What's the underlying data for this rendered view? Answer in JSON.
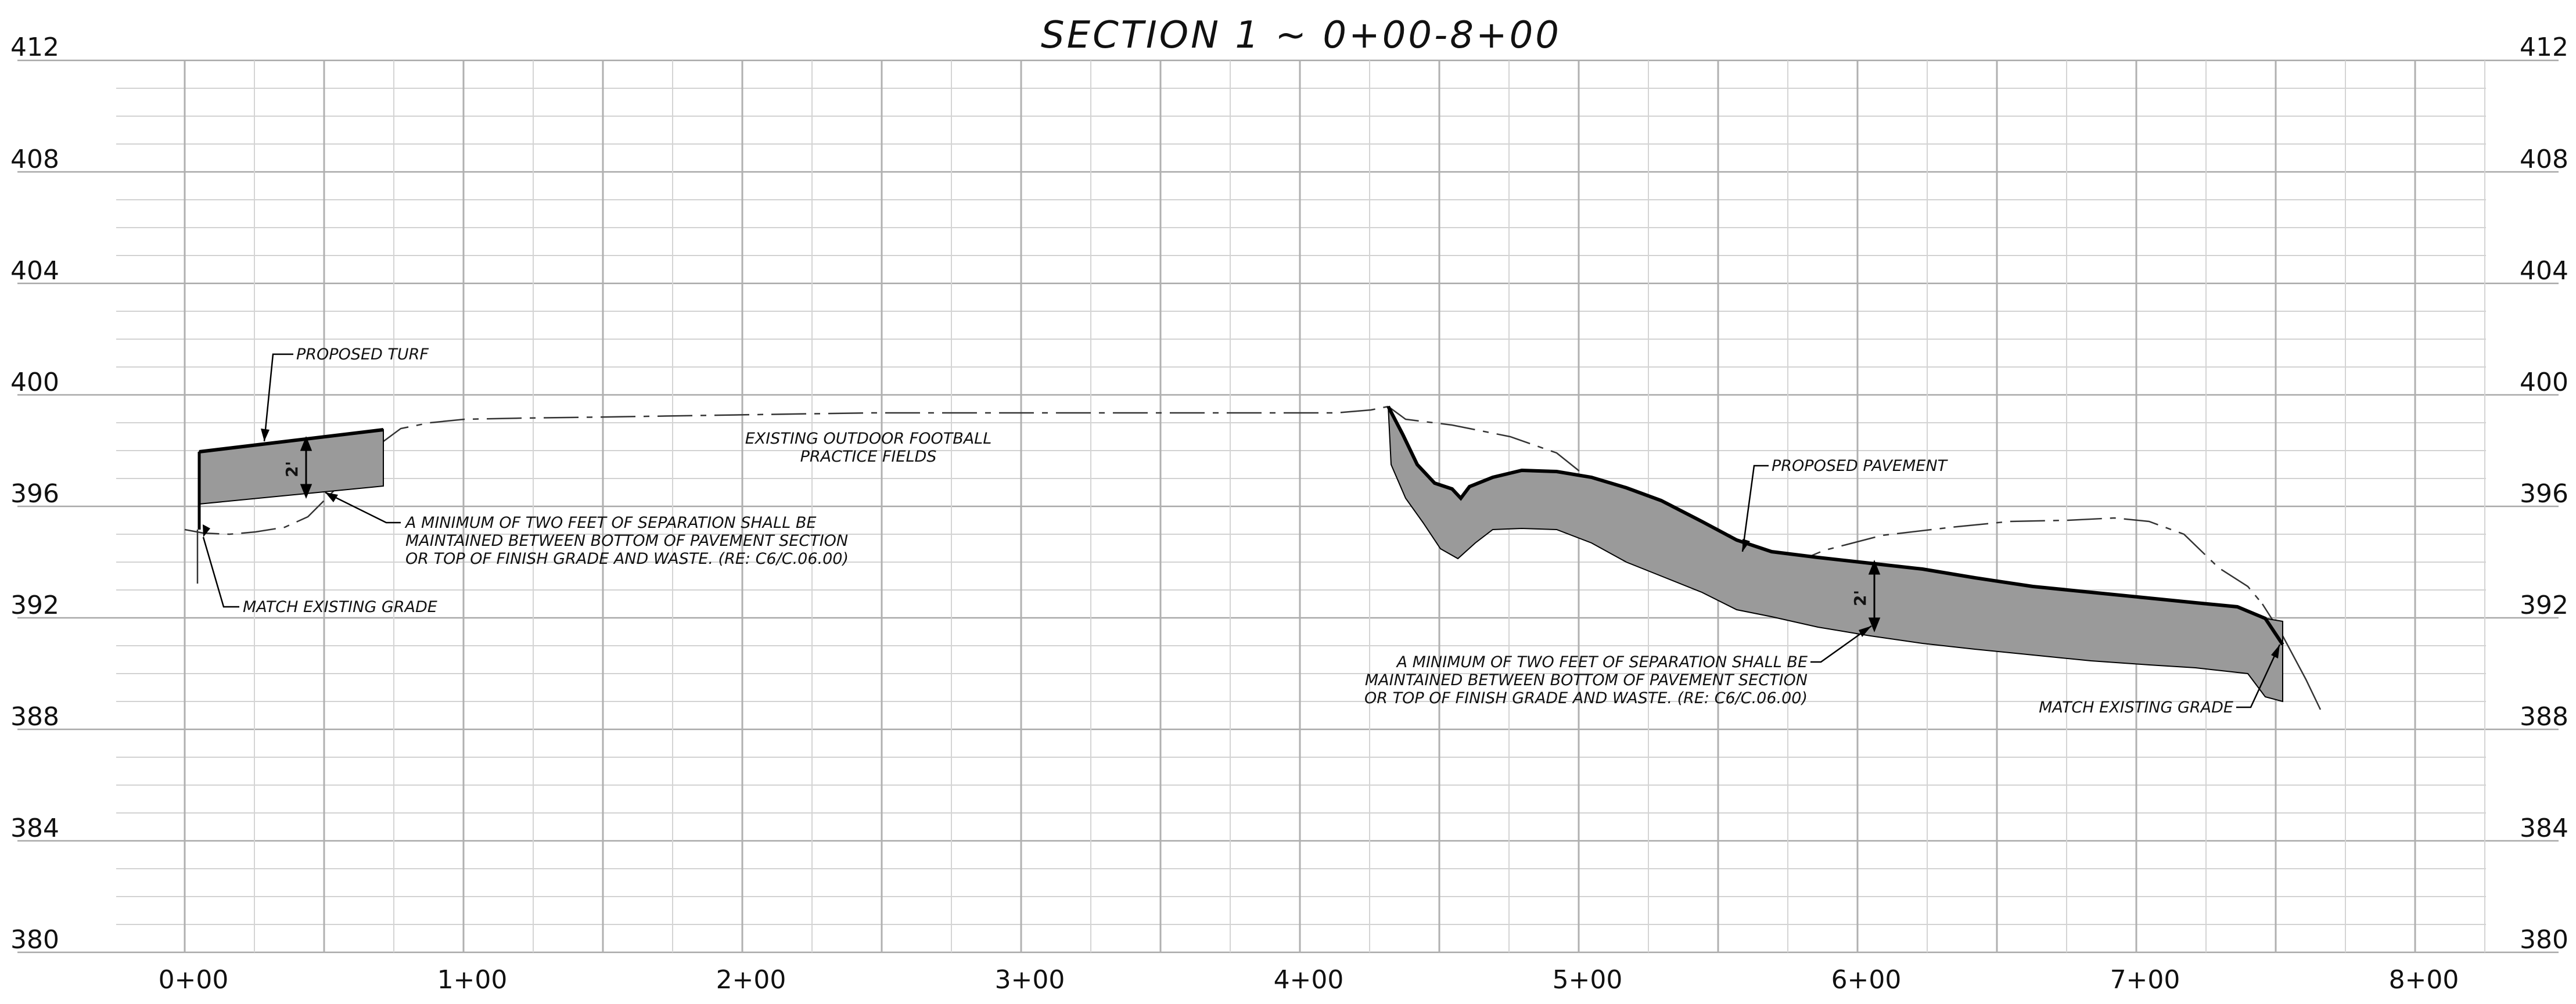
{
  "title": "SECTION 1 ~ 0+00-8+00",
  "elevation_labels": [
    "412",
    "408",
    "404",
    "400",
    "396",
    "392",
    "388",
    "384",
    "380"
  ],
  "station_labels": [
    "0+00",
    "1+00",
    "2+00",
    "3+00",
    "4+00",
    "5+00",
    "6+00",
    "7+00",
    "8+00"
  ],
  "annotations": {
    "proposed_turf": "PROPOSED TURF",
    "proposed_pavement": "PROPOSED PAVEMENT",
    "existing_fields_line1": "EXISTING OUTDOOR FOOTBALL",
    "existing_fields_line2": "PRACTICE FIELDS",
    "match_grade_left": "MATCH EXISTING GRADE",
    "match_grade_right": "MATCH EXISTING GRADE",
    "separation_left": [
      "A MINIMUM OF TWO FEET OF SEPARATION SHALL BE",
      "MAINTAINED BETWEEN BOTTOM OF PAVEMENT SECTION",
      "OR TOP OF FINISH GRADE AND WASTE. (RE: C6/C.06.00)"
    ],
    "separation_right": [
      "A MINIMUM OF TWO FEET OF SEPARATION SHALL BE",
      "MAINTAINED BETWEEN BOTTOM OF PAVEMENT SECTION",
      "OR TOP OF FINISH GRADE AND WASTE. (RE: C6/C.06.00)"
    ],
    "dim_left": "2'",
    "dim_right": "2'"
  },
  "colors": {
    "fill": "#9a9a9a",
    "ink": "#111111"
  }
}
